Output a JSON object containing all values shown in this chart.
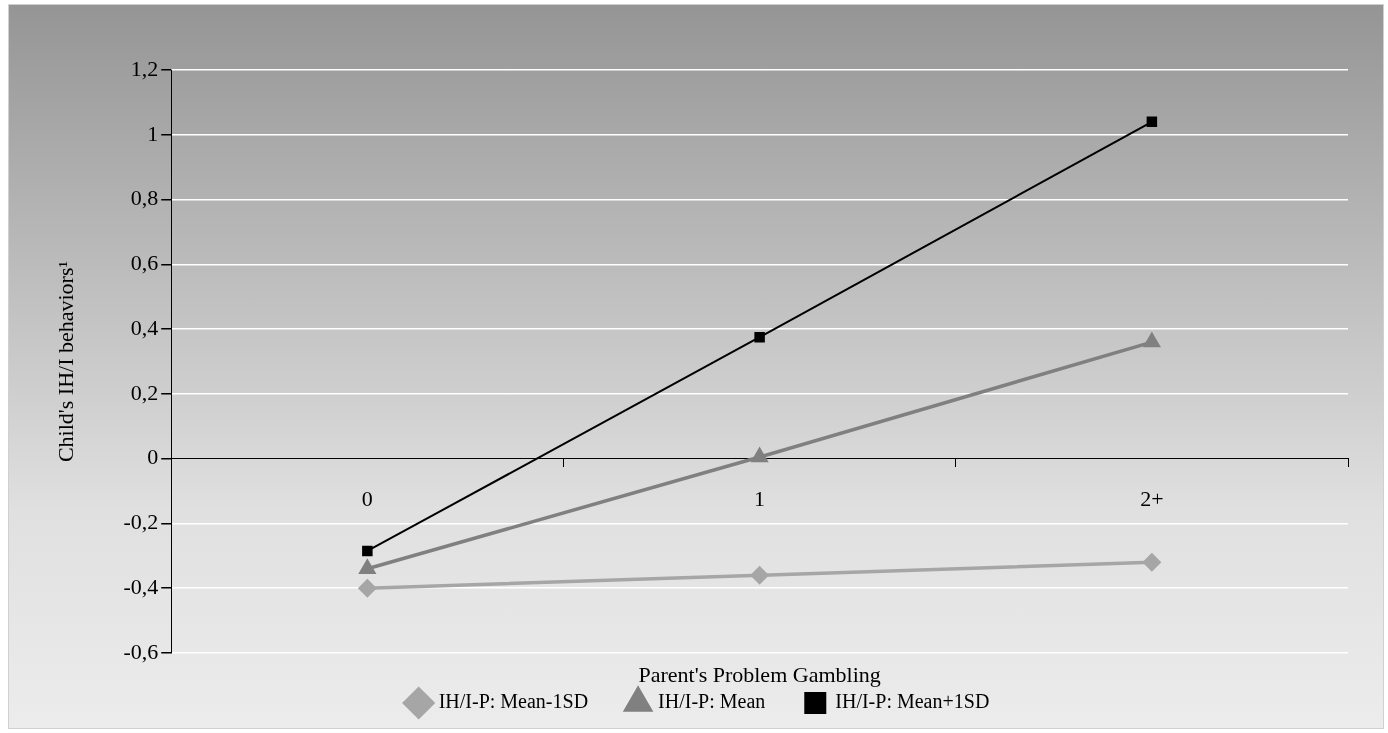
{
  "chart_data": {
    "type": "line",
    "xlabel": "Parent's Problem Gambling",
    "ylabel": "Child's IH/I behaviors¹",
    "categories": [
      "0",
      "1",
      "2+"
    ],
    "series": [
      {
        "name": "IH/I-P: Mean-1SD",
        "color": "#a6a6a6",
        "marker": "diamond",
        "values": [
          -0.4,
          -0.36,
          -0.32
        ]
      },
      {
        "name": "IH/I-P: Mean",
        "color": "#808080",
        "marker": "triangle",
        "values": [
          -0.34,
          0.005,
          0.36
        ]
      },
      {
        "name": "IH/I-P: Mean+1SD",
        "color": "#000000",
        "marker": "square",
        "values": [
          -0.285,
          0.375,
          1.04
        ]
      }
    ],
    "ylim": [
      -0.6,
      1.2
    ],
    "yticks": [
      {
        "value": -0.6,
        "label": "-0,6"
      },
      {
        "value": -0.4,
        "label": "-0,4"
      },
      {
        "value": -0.2,
        "label": "-0,2"
      },
      0,
      {
        "value": 0.2,
        "label": "0,2"
      },
      {
        "value": 0.4,
        "label": "0,4"
      },
      {
        "value": 0.6,
        "label": "0,6"
      },
      {
        "value": 0.8,
        "label": "0,8"
      },
      1,
      {
        "value": 1.2,
        "label": "1,2"
      }
    ],
    "grid": "y",
    "legend": "bottom",
    "line_style": "solid"
  }
}
